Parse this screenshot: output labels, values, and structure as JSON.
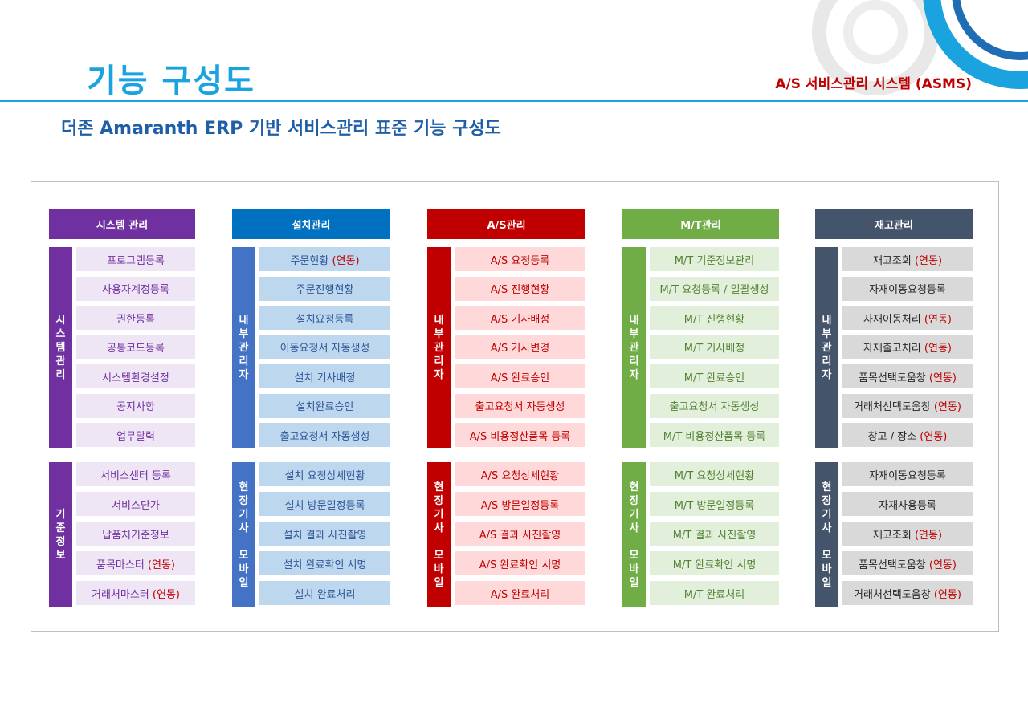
{
  "header": {
    "title": "기능 구성도",
    "system_name": "A/S 서비스관리 시스템 (ASMS)",
    "subtitle": "더존 Amaranth ERP 기반 서비스관리 표준 기능 구성도"
  },
  "colors": {
    "accent": "#1BA3E0",
    "subtitle": "#1F5FA8",
    "highlight": "#C00000"
  },
  "columns": [
    {
      "id": "system",
      "title": "시스템 관리",
      "header_color": "#7030A0",
      "side_color": "#7030A0",
      "item_bg": "#EFE6F5",
      "item_color": "#7030A0",
      "groups": [
        {
          "label": "시\n스\n템\n관\n리",
          "items": [
            {
              "text": "프로그램등록",
              "note": ""
            },
            {
              "text": "사용자계정등록",
              "note": ""
            },
            {
              "text": "권한등록",
              "note": ""
            },
            {
              "text": "공통코드등록",
              "note": ""
            },
            {
              "text": "시스템환경설정",
              "note": ""
            },
            {
              "text": "공지사항",
              "note": ""
            },
            {
              "text": "업무달력",
              "note": ""
            }
          ]
        },
        {
          "label": "기\n준\n정\n보",
          "items": [
            {
              "text": "서비스센터 등록",
              "note": ""
            },
            {
              "text": "서비스단가",
              "note": ""
            },
            {
              "text": "납품처기준정보",
              "note": ""
            },
            {
              "text": "품목마스터 ",
              "note": "(연동)"
            },
            {
              "text": "거래처마스터 ",
              "note": "(연동)"
            }
          ]
        }
      ]
    },
    {
      "id": "install",
      "title": "설치관리",
      "header_color": "#0070C0",
      "side_color": "#4472C4",
      "item_bg": "#BDD7EE",
      "item_color": "#2F5597",
      "groups": [
        {
          "label": "내\n부\n관\n리\n자",
          "items": [
            {
              "text": "주문현황 ",
              "note": "(연동)"
            },
            {
              "text": "주문진행현황",
              "note": ""
            },
            {
              "text": "설치요청등록",
              "note": ""
            },
            {
              "text": "이동요청서 자동생성",
              "note": ""
            },
            {
              "text": "설치 기사배정",
              "note": ""
            },
            {
              "text": "설치완료승인",
              "note": ""
            },
            {
              "text": "출고요청서 자동생성",
              "note": ""
            }
          ]
        },
        {
          "label": "현\n장\n기\n사\n\n모\n바\n일",
          "items": [
            {
              "text": "설치 요청상세현황",
              "note": ""
            },
            {
              "text": "설치 방문일정등록",
              "note": ""
            },
            {
              "text": "설치 결과 사진촬영",
              "note": ""
            },
            {
              "text": "설치 완료확인 서명",
              "note": ""
            },
            {
              "text": "설치 완료처리",
              "note": ""
            }
          ]
        }
      ]
    },
    {
      "id": "as",
      "title": "A/S관리",
      "header_color": "#C00000",
      "side_color": "#C00000",
      "item_bg": "#FFD9D9",
      "item_color": "#C00000",
      "groups": [
        {
          "label": "내\n부\n관\n리\n자",
          "items": [
            {
              "text": "A/S 요청등록",
              "note": ""
            },
            {
              "text": "A/S 진행현황",
              "note": ""
            },
            {
              "text": "A/S 기사배정",
              "note": ""
            },
            {
              "text": "A/S 기사변경",
              "note": ""
            },
            {
              "text": "A/S 완료승인",
              "note": ""
            },
            {
              "text": "출고요청서 자동생성",
              "note": ""
            },
            {
              "text": "A/S 비용정산품목 등록",
              "note": ""
            }
          ]
        },
        {
          "label": "현\n장\n기\n사\n\n모\n바\n일",
          "items": [
            {
              "text": "A/S 요청상세현황",
              "note": ""
            },
            {
              "text": "A/S 방문일정등록",
              "note": ""
            },
            {
              "text": "A/S 결과 사진촬영",
              "note": ""
            },
            {
              "text": "A/S 완료확인 서명",
              "note": ""
            },
            {
              "text": "A/S 완료처리",
              "note": ""
            }
          ]
        }
      ]
    },
    {
      "id": "mt",
      "title": "M/T관리",
      "header_color": "#70AD47",
      "side_color": "#70AD47",
      "item_bg": "#E2EFDA",
      "item_color": "#548235",
      "groups": [
        {
          "label": "내\n부\n관\n리\n자",
          "items": [
            {
              "text": "M/T 기준정보관리",
              "note": ""
            },
            {
              "text": "M/T 요청등록 / 일괄생성",
              "note": ""
            },
            {
              "text": "M/T 진행현황",
              "note": ""
            },
            {
              "text": "M/T 기사배정",
              "note": ""
            },
            {
              "text": "M/T 완료승인",
              "note": ""
            },
            {
              "text": "출고요청서 자동생성",
              "note": ""
            },
            {
              "text": "M/T 비용정산품목 등록",
              "note": ""
            }
          ]
        },
        {
          "label": "현\n장\n기\n사\n\n모\n바\n일",
          "items": [
            {
              "text": "M/T 요청상세현황",
              "note": ""
            },
            {
              "text": "M/T 방문일정등록",
              "note": ""
            },
            {
              "text": "M/T 결과 사진촬영",
              "note": ""
            },
            {
              "text": "M/T 완료확인 서명",
              "note": ""
            },
            {
              "text": "M/T 완료처리",
              "note": ""
            }
          ]
        }
      ]
    },
    {
      "id": "stock",
      "title": "재고관리",
      "header_color": "#44546A",
      "side_color": "#44546A",
      "item_bg": "#D9D9D9",
      "item_color": "#262626",
      "groups": [
        {
          "label": "내\n부\n관\n리\n자",
          "items": [
            {
              "text": "재고조회 ",
              "note": "(연동)"
            },
            {
              "text": "자재이동요청등록",
              "note": ""
            },
            {
              "text": "자재이동처리 ",
              "note": "(연동)"
            },
            {
              "text": "자재출고처리 ",
              "note": "(연동)"
            },
            {
              "text": "품목선택도움창 ",
              "note": "(연동)"
            },
            {
              "text": "거래처선택도움창 ",
              "note": "(연동)"
            },
            {
              "text": "창고 / 장소 ",
              "note": "(연동)"
            }
          ]
        },
        {
          "label": "현\n장\n기\n사\n\n모\n바\n일",
          "items": [
            {
              "text": "자재이동요청등록",
              "note": ""
            },
            {
              "text": "자재사용등록",
              "note": ""
            },
            {
              "text": "재고조회 ",
              "note": "(연동)"
            },
            {
              "text": "품목선택도움창 ",
              "note": "(연동)"
            },
            {
              "text": "거래처선택도움창 ",
              "note": "(연동)"
            }
          ]
        }
      ]
    }
  ]
}
